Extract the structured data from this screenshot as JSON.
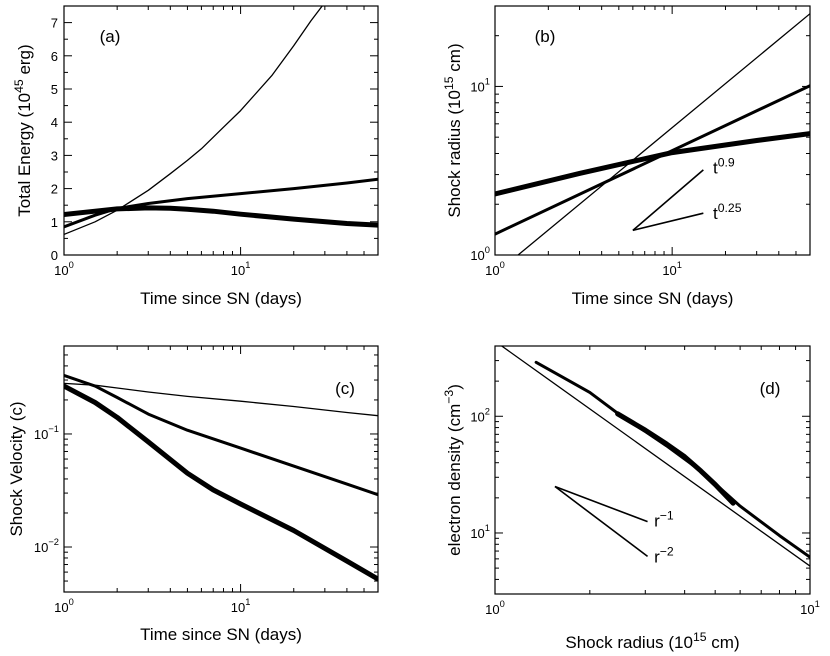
{
  "chart_data": [
    {
      "id": "a",
      "type": "line",
      "panel_label": "(a)",
      "xlabel": "Time since SN  (days)",
      "ylabel": {
        "base": "Total Energy  (10",
        "sup": "45",
        "tail": " erg)"
      },
      "xscale": "log",
      "yscale": "linear",
      "xlim": [
        1,
        60
      ],
      "ylim": [
        0,
        7.5
      ],
      "xticks": [
        {
          "v": 1,
          "b": "10",
          "e": "0"
        },
        {
          "v": 10,
          "b": "10",
          "e": "1"
        }
      ],
      "yticks": [
        "0",
        "1",
        "2",
        "3",
        "4",
        "5",
        "6",
        "7"
      ],
      "series": [
        {
          "name": "thin",
          "x": [
            1,
            1.5,
            2,
            3,
            4,
            5,
            6,
            8,
            10,
            15,
            20,
            25,
            29
          ],
          "y": [
            0.62,
            1.0,
            1.35,
            1.95,
            2.45,
            2.85,
            3.2,
            3.85,
            4.35,
            5.4,
            6.3,
            7.05,
            7.5
          ]
        },
        {
          "name": "medium",
          "x": [
            1,
            1.5,
            2,
            3,
            5,
            10,
            20,
            40,
            60
          ],
          "y": [
            0.85,
            1.2,
            1.4,
            1.55,
            1.7,
            1.85,
            2.0,
            2.17,
            2.28
          ]
        },
        {
          "name": "thick",
          "x": [
            1,
            1.5,
            2,
            3,
            4,
            5,
            7,
            10,
            20,
            40,
            60
          ],
          "y": [
            1.22,
            1.32,
            1.39,
            1.42,
            1.41,
            1.38,
            1.32,
            1.23,
            1.08,
            0.95,
            0.9
          ]
        }
      ]
    },
    {
      "id": "b",
      "type": "line",
      "panel_label": "(b)",
      "xlabel": "Time since SN  (days)",
      "ylabel": {
        "base": "Shock radius  (10",
        "sup": "15",
        "tail": " cm)"
      },
      "xscale": "log",
      "yscale": "log",
      "xlim": [
        1,
        60
      ],
      "ylim": [
        1,
        30
      ],
      "xticks": [
        {
          "v": 1,
          "b": "10",
          "e": "0"
        },
        {
          "v": 10,
          "b": "10",
          "e": "1"
        }
      ],
      "yticks": [
        {
          "v": 1,
          "b": "10",
          "e": "0"
        },
        {
          "v": 10,
          "b": "10",
          "e": "1"
        }
      ],
      "series": [
        {
          "name": "thin",
          "x": [
            1.35,
            60
          ],
          "y": [
            1.0,
            27
          ]
        },
        {
          "name": "medium",
          "x": [
            1,
            60
          ],
          "y": [
            1.33,
            10.1
          ]
        },
        {
          "name": "thick",
          "x": [
            1,
            3,
            10,
            30,
            60
          ],
          "y": [
            2.3,
            3.05,
            4.05,
            4.78,
            5.25
          ]
        }
      ],
      "annotations": [
        {
          "text": "t",
          "sup": "0.9",
          "line_from": [
            6.0,
            1.4
          ],
          "line_to": [
            15,
            3.2
          ],
          "label_at": [
            17,
            3.3
          ]
        },
        {
          "text": "t",
          "sup": "0.25",
          "line_from": [
            6.0,
            1.4
          ],
          "line_to": [
            15,
            1.77
          ],
          "label_at": [
            17,
            1.78
          ]
        }
      ]
    },
    {
      "id": "c",
      "type": "line",
      "panel_label": "(c)",
      "xlabel": "Time since SN  (days)",
      "ylabel": {
        "base": "Shock Velocity  (c)",
        "sup": "",
        "tail": ""
      },
      "xscale": "log",
      "yscale": "log",
      "xlim": [
        1,
        60
      ],
      "ylim": [
        0.004,
        0.6
      ],
      "xticks": [
        {
          "v": 1,
          "b": "10",
          "e": "0"
        },
        {
          "v": 10,
          "b": "10",
          "e": "1"
        }
      ],
      "yticks": [
        {
          "v": 0.01,
          "b": "10",
          "e": "−2"
        },
        {
          "v": 0.1,
          "b": "10",
          "e": "−1"
        }
      ],
      "series": [
        {
          "name": "thin",
          "x": [
            1,
            1.5,
            2,
            3,
            5,
            10,
            20,
            40,
            60
          ],
          "y": [
            0.28,
            0.27,
            0.255,
            0.235,
            0.215,
            0.195,
            0.175,
            0.155,
            0.145
          ]
        },
        {
          "name": "medium",
          "x": [
            1,
            1.5,
            2,
            3,
            5,
            10,
            20,
            40,
            60
          ],
          "y": [
            0.33,
            0.265,
            0.21,
            0.15,
            0.108,
            0.075,
            0.052,
            0.036,
            0.029
          ]
        },
        {
          "name": "thick",
          "x": [
            1,
            1.5,
            2,
            3,
            5,
            7,
            10,
            20,
            40,
            60
          ],
          "y": [
            0.265,
            0.19,
            0.14,
            0.085,
            0.045,
            0.032,
            0.024,
            0.014,
            0.0075,
            0.0052
          ]
        }
      ]
    },
    {
      "id": "d",
      "type": "line",
      "panel_label": "(d)",
      "xlabel": "Shock radius  (10¹⁵ cm)",
      "xlabel_parts": {
        "base": "Shock radius  (10",
        "sup": "15",
        "tail": " cm)"
      },
      "ylabel": {
        "base": "electron density  (cm",
        "sup": "−3",
        "tail": ")"
      },
      "xscale": "log",
      "yscale": "log",
      "xlim": [
        1,
        10
      ],
      "ylim": [
        3,
        400
      ],
      "xticks": [
        {
          "v": 1,
          "b": "10",
          "e": "0"
        },
        {
          "v": 10,
          "b": "10",
          "e": "1"
        }
      ],
      "yticks": [
        {
          "v": 10,
          "b": "10",
          "e": "1"
        },
        {
          "v": 100,
          "b": "10",
          "e": "2"
        }
      ],
      "series": [
        {
          "name": "thin",
          "x": [
            1.05,
            10
          ],
          "y": [
            400,
            5.2
          ]
        },
        {
          "name": "medium",
          "x": [
            1.35,
            2.0,
            2.5,
            3.0,
            3.5,
            4.5,
            6,
            8,
            10
          ],
          "y": [
            290,
            160,
            102,
            74,
            56,
            34,
            17,
            9.5,
            6.2
          ]
        },
        {
          "name": "thick",
          "x": [
            2.45,
            3.0,
            3.5,
            4.0,
            4.5,
            5.0,
            5.7
          ],
          "y": [
            105,
            76,
            58,
            45,
            34,
            26,
            18
          ]
        }
      ],
      "annotations": [
        {
          "text": "r",
          "sup": "−1",
          "line_from": [
            1.55,
            25
          ],
          "line_to": [
            3.05,
            12.5
          ],
          "label_at": [
            3.2,
            12.8
          ]
        },
        {
          "text": "r",
          "sup": "−2",
          "line_from": [
            1.55,
            25
          ],
          "line_to": [
            3.05,
            6.3
          ],
          "label_at": [
            3.2,
            6.3
          ]
        }
      ]
    }
  ]
}
